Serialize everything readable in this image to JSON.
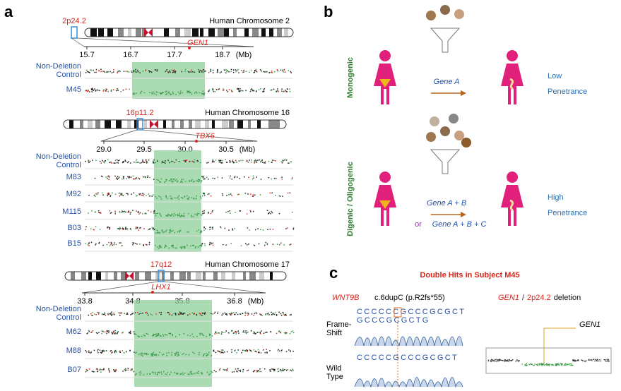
{
  "panel_a": {
    "label": "a",
    "chromosomes": [
      {
        "band": "2p24.2",
        "name": "Human Chromosome 2",
        "gene": "GEN1",
        "ticks": [
          "15.7",
          "16.7",
          "17.7",
          "18.7"
        ],
        "unit": "(Mb)",
        "control": [
          "Non-Deletion",
          "Control"
        ],
        "samples": [
          "M45"
        ]
      },
      {
        "band": "16p11.2",
        "name": "Human Chromosome 16",
        "gene": "TBX6",
        "ticks": [
          "29.0",
          "29.5",
          "30.0",
          "30.5"
        ],
        "unit": "(Mb)",
        "control": [
          "Non-Deletion",
          "Control"
        ],
        "samples": [
          "M83",
          "M92",
          "M115",
          "B03",
          "B15"
        ]
      },
      {
        "band": "17q12",
        "name": "Human Chromosome 17",
        "gene": "LHX1",
        "ticks": [
          "33.8",
          "34.8",
          "35.8",
          "36.8"
        ],
        "unit": "(Mb)",
        "control": [
          "Non-Deletion",
          "Control"
        ],
        "samples": [
          "M62",
          "M88",
          "B07"
        ]
      }
    ]
  },
  "panel_b": {
    "label": "b",
    "models": [
      {
        "name": "Monogenic",
        "genes": [
          "Gene A"
        ],
        "outcome": [
          "Low",
          "Penetrance"
        ]
      },
      {
        "name": "Digenic / Oligogenic",
        "genes": [
          "Gene A + B",
          "Gene A + B + C"
        ],
        "connector": "or",
        "outcome": [
          "High",
          "Penetrance"
        ]
      }
    ]
  },
  "panel_c": {
    "label": "c",
    "title": "Double Hits in Subject M45",
    "left": {
      "gene": "WNT9B",
      "variant": "c.6dupC (p.R2fs*55)",
      "rows": [
        {
          "label": [
            "Frame-",
            "Shift"
          ],
          "sequences": [
            "CCCCCCGCCCGCGCT",
            "GCCCGCGCTG"
          ]
        },
        {
          "label": [
            "Wild",
            "Type"
          ],
          "sequences": [
            "CCCCCGCCCGCGCT"
          ]
        }
      ]
    },
    "right": {
      "gene": "GEN1",
      "separator": "/",
      "band": "2p24.2",
      "event": "deletion",
      "annotation": "GEN1"
    }
  }
}
